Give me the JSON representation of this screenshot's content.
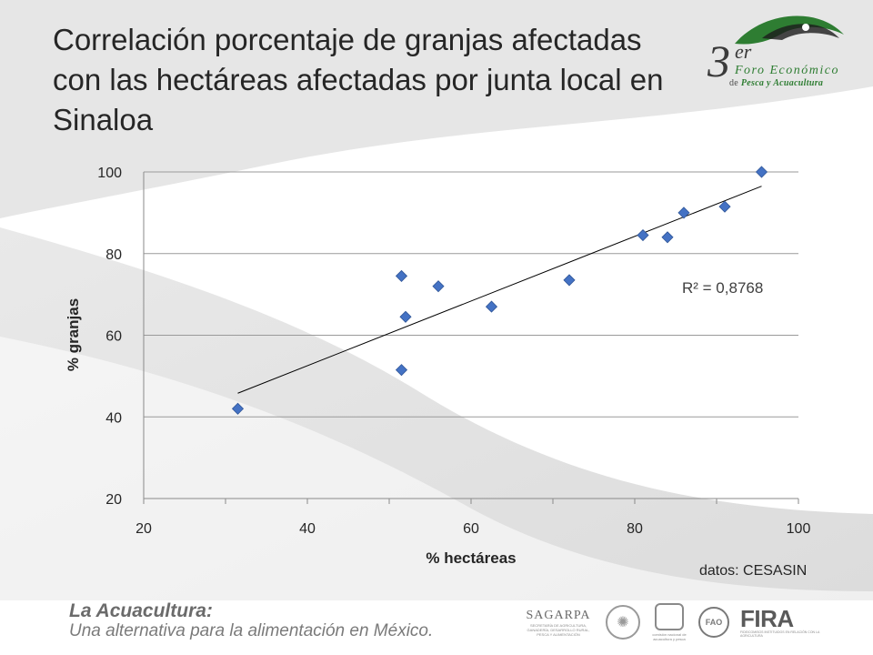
{
  "slide": {
    "title": "Correlación porcentaje de granjas afectadas con las hectáreas afectadas por junta local en Sinaloa",
    "source": "datos: CESASIN",
    "footer_title": "La Acuacultura:",
    "footer_subtitle": "Una alternativa para la alimentación en México."
  },
  "logo": {
    "number": "3",
    "suffix": "er",
    "line1": "Foro Económico",
    "line2_prefix": "de",
    "line2_strong": "Pesca y Acuacultura"
  },
  "partners": {
    "sagarpa": "SAGARPA",
    "sagarpa_desc": "SECRETARÍA DE AGRICULTURA, GANADERÍA, DESARROLLO RURAL, PESCA Y ALIMENTACIÓN",
    "conapesca_desc": "comisión nacional de acuacultura y pesca",
    "fao": "FAO",
    "fira": "FIRA",
    "fira_desc": "FIDEICOMISOS INSTITUIDOS EN RELACIÓN CON LA AGRICULTURA"
  },
  "icons": {
    "seal": "mexico-seal-icon",
    "conapesca": "conapesca-logo-icon",
    "fao": "fao-logo-icon"
  },
  "colors": {
    "point": "#4472C4",
    "point_edge": "#2f5597",
    "trendline": "#000000",
    "gridline": "#9a9a9a"
  },
  "chart_data": {
    "type": "scatter",
    "title": "",
    "xlabel": "% hectáreas",
    "ylabel": "% granjas",
    "xlim": [
      20,
      100
    ],
    "ylim": [
      20,
      100
    ],
    "xticks": [
      20,
      40,
      60,
      80,
      100
    ],
    "yticks": [
      20,
      40,
      60,
      80,
      100
    ],
    "grid": "horizontal",
    "points": [
      {
        "x": 31.5,
        "y": 42
      },
      {
        "x": 51.5,
        "y": 74.5
      },
      {
        "x": 51.5,
        "y": 51.5
      },
      {
        "x": 52,
        "y": 64.5
      },
      {
        "x": 56,
        "y": 72
      },
      {
        "x": 62.5,
        "y": 67
      },
      {
        "x": 72,
        "y": 73.5
      },
      {
        "x": 81,
        "y": 84.5
      },
      {
        "x": 84,
        "y": 84
      },
      {
        "x": 86,
        "y": 90
      },
      {
        "x": 91,
        "y": 91.5
      },
      {
        "x": 95.5,
        "y": 100
      }
    ],
    "trendline": {
      "type": "linear",
      "x": [
        31.5,
        95.5
      ],
      "y": [
        45.8,
        96.5
      ]
    },
    "annotation": "R² = 0,8768"
  }
}
